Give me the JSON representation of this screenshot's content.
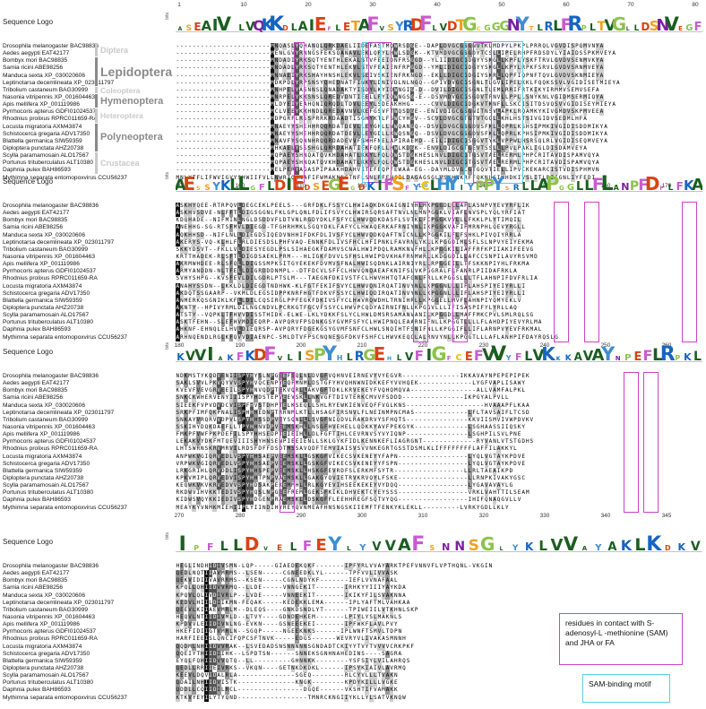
{
  "figure": {
    "logo_label": "Sequence Logo",
    "bits_label": "bits",
    "logo_residues": [
      "ASEAIV LVQKKDLAIEFLETAFVSYRDFLVDTGCGGGNYTLRLFRPLTVGLLDSNVEGF",
      "AESSYKLLGFLDIEDSEGEGDKIFSFYCLHYIYPPYSRLLAPGGLLFLANPFDFLFKA",
      "KVVIAKFKDFVLISPYHLRGEHLVFIGFCEFVVYFLVKKKAVAYNPEFLRPKL",
      "IPFLLDVELFEYLYVVAFSNNSGLYKLVVAYAKLKDKV"
    ],
    "species": [
      "Drosophila melanogaster BAC98836",
      "Aedes aegypti EAT42177",
      "Bombyx mori BAC98835",
      "Samia ricini ABE98256",
      "Manduca sexta XP_030020606",
      "Leptinotarsa decemlineata XP_023011797",
      "Tribolium castaneum BAG30999",
      "Nasonia vitripennis XP_001604463",
      "Apis mellifera XP_001119986",
      "Pyrrhocoris apterus GDFI01024537",
      "Rhodnius prolixus RPRC011659-RA",
      "Locusta migratoria AXM43874",
      "Schistocerca gregaria ADV17350",
      "Blattella germanica SIW59359",
      "Diploptera punctata AHZ20738",
      "Scylla paramamosain ALO17567",
      "Portunus trituberculatus ALT10380",
      "Daphnia pulex BAH86593",
      "Mythimna separata entomopoxvirus CCU56237"
    ],
    "taxa": [
      {
        "name": "Diptera",
        "color": "#c8c8c8"
      },
      {
        "name": "Lepidoptera",
        "color": "#8a8a8a"
      },
      {
        "name": "Coleoptera",
        "color": "#c8c8c8"
      },
      {
        "name": "Hymenoptera",
        "color": "#8a8a8a"
      },
      {
        "name": "Heteroptera",
        "color": "#c8c8c8"
      },
      {
        "name": "Polyneoptera",
        "color": "#8a8a8a"
      },
      {
        "name": "Crustacea",
        "color": "#c8c8c8"
      }
    ],
    "panels": [
      {
        "ticks": [
          "1",
          "10",
          "20",
          "30",
          "40",
          "50",
          "60",
          "70",
          "80"
        ],
        "bottom_ticks": [
          "90",
          "100",
          "110",
          "120",
          "130",
          "140",
          "150",
          "160",
          "170"
        ],
        "rows": [
          "-----------------------MNQASLYQHANQLQRKDAELIIDEFASTMQWRSDGE--DAPLDVGCGSGNVTKLMDPYLPKPLPRRQLVGVDISPQMVNYA",
          "-----------------------MENLGVYRNNGSFEKSQANAVLEKLQPYLHWLSDGK--KTVMDVGCGSGDYTCSLLIPELRHPFRDSDYLYIAIDSSPKMVEYA",
          "-----------------------MNDADIYRKSQTYENTHLEKALSTVFEEIDNFRSGGD--YLIIDIGCGDGYYSKGLLKPFLYSKFTRVLGVDVSENMVKYA",
          "-----------------------MNDADLYRKSQTYENTHLEKVLSTVFEAIENFRPGGD--YMLIDIGCGDGYYSKGLLKPYLRPKFSRVLGVDVSRNMVEYA",
          "-----------------------MNNAEIYRKSHAYHNSHLEKVLSEIVSKIENFRKNGD--EKLLDIGCGDGIYSKRLLQPFIQPNFTQVLGVDVSKNMIEYA",
          "-----------------------MDKPDLYRPSNSYQHEDNATFINKYLDNIVDLNLNGQ--GPIVDVGCGSGNLTLGVLIPELKKLFQQKSSVLVGIDISETMIEYA",
          "-----------------------MNHPELYASNNSLQNADAKTYISDYLKYIDWNGIG-D--DVILDIGCGSGNLTLEMLRRIFRTKIKYIRMMVSEMVSEFA",
          "-----------------------MNRPELYKKSNSLQREDVDNTIEELLPYIQWNGSG-E--DSVMDVGCGSGDVTFNVLLPPLLSNYKNLVGIDMSERMIQYA",
          "-----------------------MLDYEIYEAHQNIQRQDLTDVLEEYLSDEAKHHG-----CVVLDIGCGDGKVTKNFLLSKCISITDSVQSVVGIDISEYMIEYA",
          "-----------------------MCLVEEYKKHNDLQREDAVNVLKEFGSVFTWQSDGE--ENIVDIGCGSGNITNSVLAPKLRQAMKYKIVGMDVSKPMVEEA",
          "-----------------------MDPGRFLRSSPRRKRDAADTISGHYKTLFSWCYHGV--SCVLDVGCGTGTVTGQLLKHLHSTSIVGIDVSEDMLHFA",
          "-----------------------MNAEYYSHEHHRQQRDATDEVLLEYGHLLNWQANGQ--DSVLDVGCGSGDVSFKLLQPRLKSHSIPMKIVGIDISDDMIKYA",
          "-----------------------MNAEYYSHEHHRQQRDATDEVLLEYGDLLKWQSNGQ--DSVLDVGCGSGDVSFKLLQPRLKPHSIPMKIVGIDISDDMIKYA",
          "-----------------------MNAVFYSQNNHRQQRDADEVVFSHHFNELAPIRAEMD--EILIDIGCGSGGVTYKLVPPWLHSRSQLRLVGIDISEQMVEYA",
          "-----------------------MHKAELYSSSHGLQRRDAHATIEKFQPLLHWLKDGK--ENVLDIGCGTGEVTSSLLLPVLPAKLIGLDISDAMVEYA",
          "-----------------------MQPAEYSHNQATQVKHDAHATLKKYLPQLQWSTDGKHESLNVLDIGCGTGSVTAELRERMLPHPCRITAVDISPAMVQYA",
          "-----------------------MQPAEYSHNQATQVKHDAHATLKKYLPQLQWSTDGKHESLNVLDIGCGTGSVTAELRERMLPHPCRITAVDISPAMVQYA",
          "-----------------------MELPERYAGASPIPAAKHDAHVITEFEQPFEWAA-EG--DAYMLDVGCGTGQVTIELLIPVCKEKARCISTVDISPHMVN",
          "MNLYTFLIFWVIGVYSHWIIFVLLNWRIQRNAFIFWMAKNLFTNFLSNLPFENCILDAGAGSGLVSKHNKRFFQKNLSIMHDKIVSLITLDIIGNLIYFEDI"
        ]
      },
      {
        "ticks": [],
        "bottom_ticks": [
          "180",
          "190",
          "200",
          "210",
          "220",
          "230",
          "240",
          "250",
          "260"
        ],
        "rows": [
          "ASKHYQEE-RTRPQVLDEGCEKLPEELS---GRFDKLFSSYCLHWIAQKDKGAIGNIYHLMKPGGDLLLAFLASNPVYEVYRFLIK",
          "ASKHVSDVE-NLFFTLDIGSGGNLFKLGPLQNLFDLIFSVYCLHWIRSQRSAFTNVLNLMNPGGKLVIAFLNVSPLYQLYRFIAT",
          "KDQHADE--NIFMINLNGLDSDDVFLDTVNLRGDYDKLFSFYCLHWVQDKDASFLSVTKLFCPGGKVVLLLFKKLPLYTIMQIL",
          "ANEHHG-SG-RTSFMVLDIEGD-TFGHRHMKLSGQYDKLFAFYCLHWAQERKAFRNIYNLIKPGGKVAFIFMRNPHLQEVYRGLL",
          "AQKHHSD--NIFLNLLDIEGDSIQEDVNHHIFDKFDLIVSFYCLHWVQDKQAFTNICNLLKPGGKILFLFSHKLPIVQIYRRLA",
          "AKERYS-VQ-KLHLFLRLDIESDSLPHFVAQ-ENNKFDLIVSFHCLHFIPNKLFAVRNLYKLLKPGGDIMLSFLSLNPVYEIYEKMA",
          "SKKYDSVT--FKLLVLDIESYEGDLPSLSIHAEGKFDAMVSCNALHWIPDQLRAMKNVFHLLKPGGKILIAFFRFKPIIAKIFEEVG",
          "KRTTHADEK-RLSFTLDIGDSAEKLPRM---HLIGKFDVVLSFHSLHWIPDVKHAFRNMWRLLKDGGDILLAFCCSNPILAVYRSVMD",
          "AKRMWHDEE-RLSFQLLDIGSSMPKSITGYEKEKFDVMVSFNALHWISQDNKLAIRNIYRLLRPGGEILLTFSKKNPIYHLFRKMA",
          "ARMYANDDN-NLTFELLDIGRDDDNMPL--DTFDCVLSFFCLHWVQNQAEAFKNIFSLVKPGGRALFLFANRLPIIDAFRKLA",
          "SVHYSHPG--KVSFEVLDILGDRLPTSLM---TAEGNFDKIVSTFCLHWVHHTQTAFGNLFRLLKPGGSLLLTFLAHNPIFDVFRLIA",
          "ANAHYSSDN--LKKLDLDIEGDTNDHWK-KLFGTFEKIFSVYCLHWVQNIRQATINVYNLLKPGGNLLLIFLAHSPIYEIYRLLI",
          "AKDQTSSGAARP--VKMLDLEGSIDPPKNRFHGTFDKVFSSYCLHWIQDIRQATINVYNLLKPGGNLLLIFLAHSPIYEIYRLLI",
          "ANMERKQSGNIKLKFLLDILCQSIRGLPPFEGKFDKIVSFYCLHWVRQWDHLTRNIHRLLKPGGELLMVFLAHNPIYQMYEKLV",
          "AKNTY--HPIVYRMLDILNGCNDVLPCRKGTFGCVFSSYCLHWVPCQDYAIRNIFNLLKPGGVLLLIFISASPIFYLYRLLAQ",
          "ATSTY--VQPKLTFHVVDISSTHIDK-ELWE-LKLYDKKFSLYCLHWLDMSRSAMANVANILKPGGDLLMAFFMKCPVLSMLRQLSG",
          "ASKTFEHN--SLEFHVMDIEQRP-AVPQRVFPSDNKGSYGVMFSFYCLHWIPNQLEAARNIFNLLKPGGTLLLLFLAHDPIYEVYRLMA",
          "AHKNF-EHNQLELHVLDIEQRSP-AVPQRYFDGEKGSYGVMFSNFCLHWLSNQIHTFSNIFNLLKPGGIFLLIFLARNPVYEVFRKMAL",
          "ARHNQENDLRGLKFQVVDIAENPC-SMLDTVFPSCNQNESGFDKVFSHFCLHWVKEQCLALRNVYNLLKPGGTLLLAFLANHPIFDAYRQSLG"
        ]
      },
      {
        "ticks": [],
        "bottom_ticks": [
          "270",
          "280",
          "290",
          "300",
          "310",
          "320",
          "330",
          "340",
          "345"
        ],
        "rows": [
          "NDKMSTYKQDVENIISPYHYSLNPGEEFSQLNLDVGFVQHNVEIRNEVYVYEGVR--------------IKKAVAYNPEPEPIPEK",
          "SAKLSVVLPKVQYVVSPYHVQCENPYEQFMNMLDSTGFYHVQHNWNIDKKEFYVVHQEK-------------LYGFVAPLISAWY",
          "KVEVFVEVGRVEEILSPYHNVQDPTEKVQRLLAKVGFTDKLKRVEKEYFVQHQMQVA----------------ALLVAMFALPKL",
          "SNKCKWHERVENYIIISPYHDSTEPVEEVSKLLNKVGFTDIVTERKCMVVFSDDD---------------IKPGYALPVLL",
          "SIEEKFVPVDVDCVISPFHVSTDHPTELKSEQLLSHLRYEWKIENVEQFFVGLKNS-------------------HVAAAPFLKAA",
          "SRKPFIMFQKPNALISPHHHEDNPTRRNMLKTLLHSAGFIRSNVLFLNEINMPNCMAS-------------LFLTAVSAIFLTCSD",
          "SNKAYVRQRVVDPVLSPYHHSSDPVEYSQNLLLSVGFNIQDVLRAKDRVYSFHQTS---------------KKVIISMVIVWPDVKV",
          "SSKIHYDQKDAEFLLTPYHHNVDPVEEMSKHLLNSGFHVEHELLQDKKYAVFPEKGYK-------------LSGHAASSIIQSKY",
          "FMKPFVWFPKPDEFILSPYHHSEDPTEIEIHLLDLFGFTIHLCEVRNVSYVYIQNP---------------LSGHPILSVLPNE",
          "LEKAKVYDKFMTQEVIIISHYHNSENPIEEIENLLSKLGYKFIDLKENNKEFLIAGRGNT-------------RYVANLVTSTGDHS",
          "LHTSWRNSKRVMRVILRDSFDFFDSDTMSSAVQDFTEMVIAISVSVVNKEGRTGSSTDSMLKLIFFFFFFFFLAFFILAKKYL",
          "ANPWKVGIQRVEDLVSPYHHSAEPVEEMSKLLGSKGFVIKECSVKENEYYFAPN-----------------LYQLVGTAYKPDVE",
          "VRPWKVGIQRVEDLVSPYHHSAEPVEEMSKLLGSKGFVIKECSVKENEYYFSPN-----------------LYQLVGTAYKPDVE",
          "LRKGRIHLQRVDDLISPYHHSPEPVEEMSKLLHSKGFEVRDFSLERKMFSYTR-----------------LLRLTAEAIKPD",
          "KPKVMIPLQRVEDVISPYHHTPNPVAEMSKLLGAKGYQVIETRVKRVQYLFSKE-----------------LLRNPKIVAKYGSC",
          "KEQWKVKVKRVEDVVSPYHDSAKPEKEMMHLLRLKGYEVIHSEEKEKEYVYDQQ-----------------LYGAVAVAYLG",
          "RKDWVIHVKKTEDIVSPYHQSLNPGEEFREMLGEKSFKIKLDHVEKTCYEYSSS-----------------VRKLVAHTTILSEAM",
          "KIDWSVQYKKIEDIVSPYHDGENPRAEMSKLLDSKGFFLEEHHREGFSQTVYQG-----------------IHIFQNAQGVLLV",
          "MEAYKYVNMKMIEHIIPLYIINDIHYREYQVNMEAFHNSNGSKIIEMFTFENKYKLEKLL---------LVRKYGDLLKLY"
        ]
      },
      {
        "ticks": [],
        "bottom_ticks": [],
        "rows": [
          "HEGLINDHIDIVSMN-LQP-----GIAEDEKQKF-------IPFYRLVVAYARKTPEFVNNVFLVPTHQNL-VKGIN",
          "QEDLNQTIIAVMRMS--LSEN-----CGNEEDKLYL------TPFVVLIVVASK",
          "QEKVIDIIVAVRRMS--KSEN-----CGNLNDYKF-------IEFLVVNAFAAL",
          "KPQLLQHIIDVVRMQ--LLDE-----VNNGEKIT-------IRHKYYIIIYAYKDA",
          "KPQVLQLIVDIVRLP--LVDE-----VNNEEKIT-------IKIKYFILSVAKNNA",
          "KEDVLHIILDIIKMN-FEQAK-----KEDEKKLEMA------IPLYAFTMLVAHKAA",
          "QEEVLKIIAEVMRLM--DLEQS----GNKDSNDLYT------TPIWEIILVTKHNLSKP",
          "HEQVLNTIIDIVMLD--LTVY----GDNDEHKEM-------LPIYLYSLMAKNLS",
          "KPDVVLEIIDIVNLNG-EVKN----GSNEEEKEI-------IPFWKFLAVLPVY",
          "HKEFIDIIGTVMRLN--SGQP-----NGEEKNKS------IPLWNFTSMVLTDPN",
          "HARFIEEISLQNCIFQPCSFTNVK-----EDGS------WEVRYVLIVAKASMNNH",
          "QQDMLNHIIDVVRAK--LSVEDADSNSNNNNNSGNDADTCKIYYTVYTVVVVCRKPKF",
          "QQEIYTHIIDIIHK--LSPDTSN------SNNEKSGNHNAHEDINS----SAGRA",
          "EYQLFQHIIDVVQTQ--LL---------GHNNKK--------YSFSIYLVILAHRQS",
          "QEDLLRRIIEIVRKS--VKQN----GETNKDKDKL------IPSYKIAIVLAVRMQ",
          "KEEVLDQVIDALRLA--------------SGEQ--------RLCYVLLLTVAKN",
          "QDAILNHIIDVISTK--------------KNGK--------KPDYKILLLVGKE",
          "QDDLLCQIIDILRCL----------------DGQE------VKSHTIFVAMAKK",
          "KTKVYEYILYTYQND-----------------TMNRCKNGIIYKLLYLSATVKNQW"
        ]
      }
    ],
    "legend_magenta": "residues in contact with S-adenosyl-L -methionine (SAM) and JHA or FA",
    "legend_cyan": "SAM-binding motif",
    "colors": {
      "magenta": "#c844c8",
      "cyan": "#5ccde8",
      "taxon_dark": "#8a8a8a",
      "taxon_light": "#c8c8c8"
    }
  }
}
